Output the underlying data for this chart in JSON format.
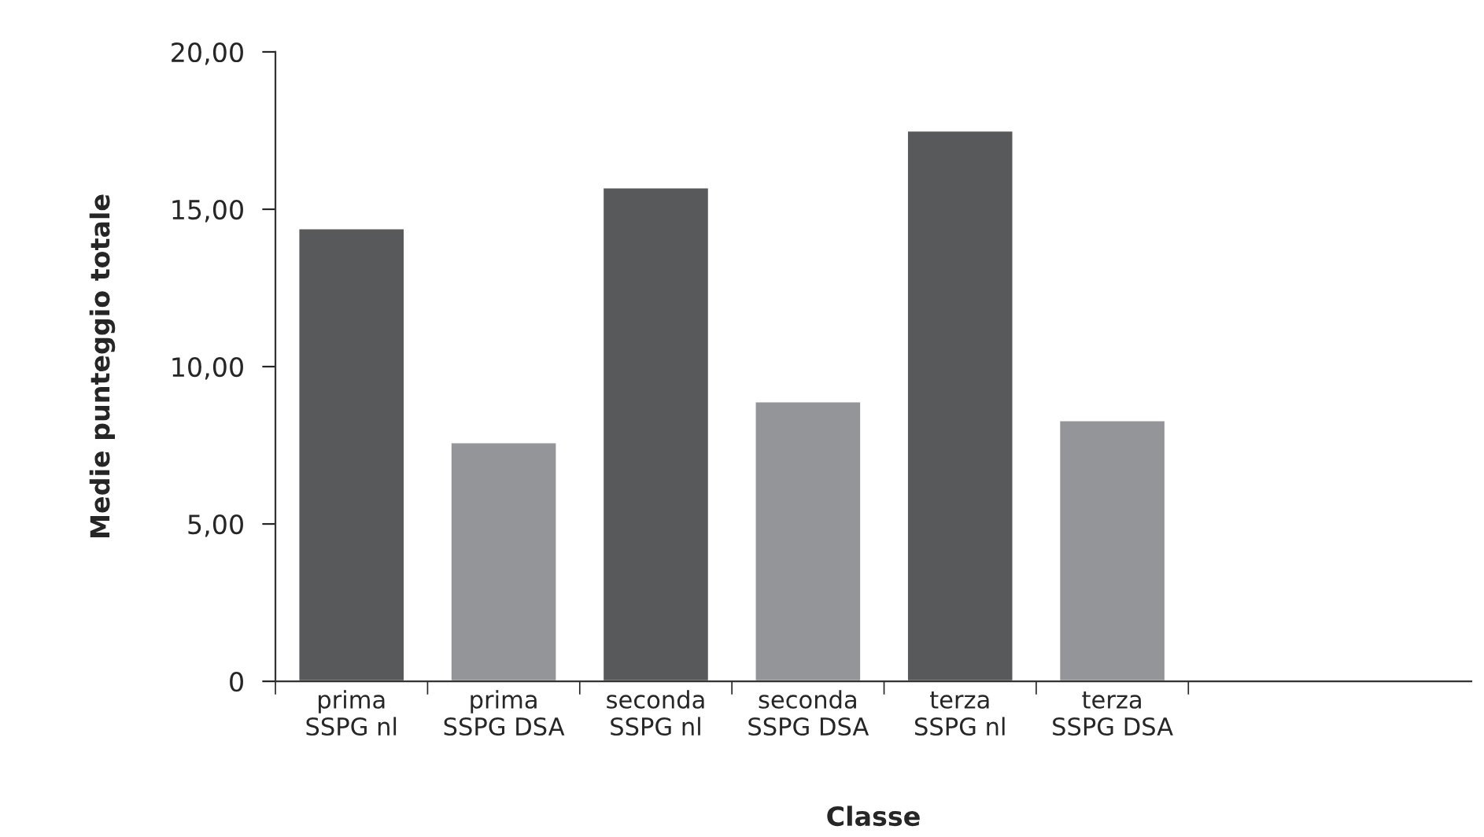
{
  "chart_data": {
    "type": "bar",
    "xlabel": "Classe",
    "ylabel": "Medie punteggio totale",
    "categories": [
      "prima\nSSPG nl",
      "prima\nSSPG DSA",
      "seconda\nSSPG nl",
      "seconda\nSSPG DSA",
      "terza\nSSPG nl",
      "terza\nSSPG DSA"
    ],
    "values": [
      14.4,
      7.6,
      15.7,
      8.9,
      17.5,
      8.3
    ],
    "colors": [
      "#58595b",
      "#939598",
      "#58595b",
      "#939598",
      "#58595b",
      "#939598"
    ],
    "ylim": [
      0,
      20
    ],
    "yticks": [
      0,
      {
        "value": 5,
        "label": "5,00"
      },
      {
        "value": 10,
        "label": "10,00"
      },
      {
        "value": 15,
        "label": "15,00"
      },
      {
        "value": 20,
        "label": "20,00"
      }
    ],
    "grid": false,
    "legend": false
  }
}
